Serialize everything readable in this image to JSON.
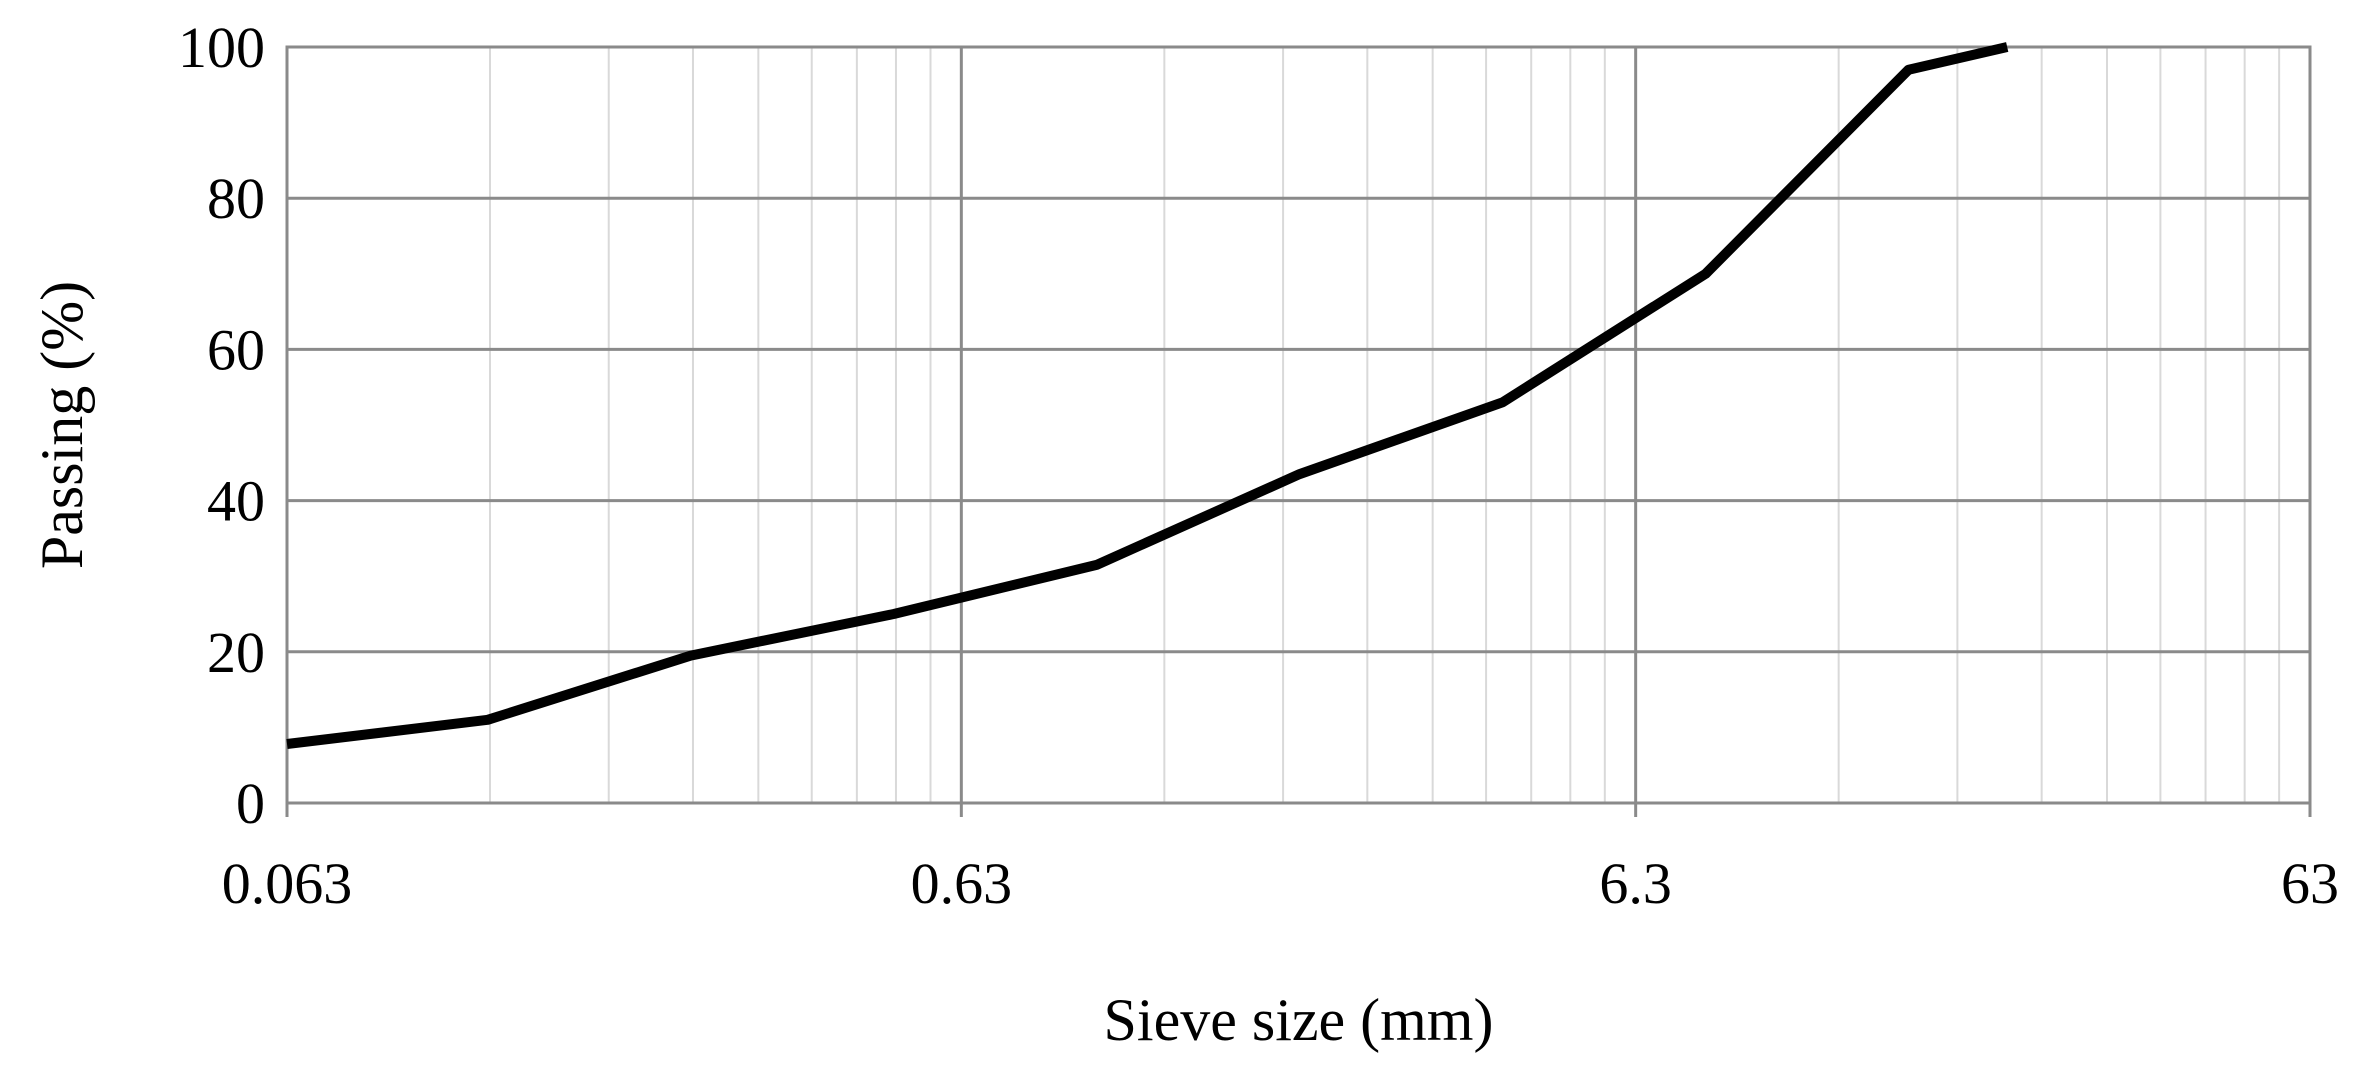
{
  "chart_data": {
    "type": "line",
    "title": "",
    "xlabel": "Sieve size (mm)",
    "ylabel": "Passing (%)",
    "x_scale": "log",
    "xlim": [
      0.063,
      63
    ],
    "ylim": [
      0,
      100
    ],
    "x_ticks": [
      0.063,
      0.63,
      6.3,
      63
    ],
    "x_tick_labels": [
      "0.063",
      "0.63",
      "6.3",
      "63"
    ],
    "y_ticks": [
      0,
      20,
      40,
      60,
      80,
      100
    ],
    "y_tick_labels": [
      "0",
      "20",
      "40",
      "60",
      "80",
      "100"
    ],
    "grid": true,
    "legend": "none",
    "line_color": "#000000",
    "major_grid_color": "#8a8a8a",
    "minor_grid_color": "#d9d9d9",
    "series": [
      {
        "x": [
          0.063,
          0.125,
          0.25,
          0.5,
          1,
          2,
          4,
          8,
          16,
          22.4
        ],
        "values": [
          7.8,
          11,
          19.5,
          25,
          31.5,
          43.5,
          53,
          70,
          97,
          100
        ]
      }
    ]
  }
}
